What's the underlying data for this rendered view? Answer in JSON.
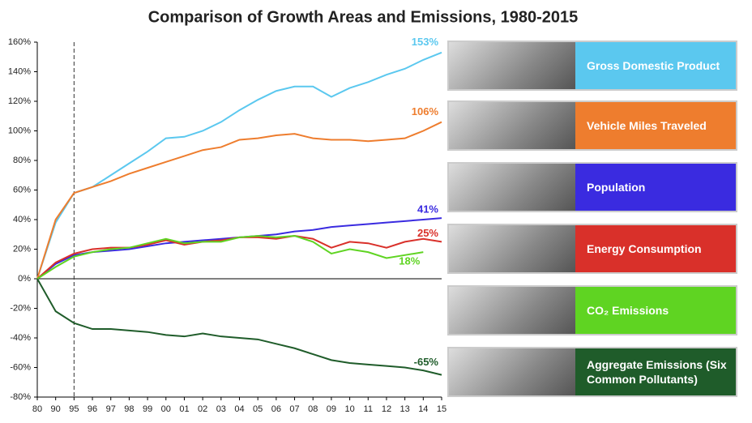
{
  "chart_data": {
    "type": "line",
    "title": "Comparison of Growth Areas and Emissions, 1980-2015",
    "categories": [
      "80",
      "90",
      "95",
      "96",
      "97",
      "98",
      "99",
      "00",
      "01",
      "02",
      "03",
      "04",
      "05",
      "06",
      "07",
      "08",
      "09",
      "10",
      "11",
      "12",
      "13",
      "14",
      "15"
    ],
    "ylim": [
      -80,
      160
    ],
    "yticks": [
      {
        "value": -80,
        "label": "-80%"
      },
      {
        "value": -60,
        "label": "-60%"
      },
      {
        "value": -40,
        "label": "-40%"
      },
      {
        "value": -20,
        "label": "-20%"
      },
      {
        "value": 0,
        "label": "0%"
      },
      {
        "value": 20,
        "label": "20%"
      },
      {
        "value": 40,
        "label": "40%"
      },
      {
        "value": 60,
        "label": "60%"
      },
      {
        "value": 80,
        "label": "80%"
      },
      {
        "value": 100,
        "label": "100%"
      },
      {
        "value": 120,
        "label": "120%"
      },
      {
        "value": 140,
        "label": "140%"
      },
      {
        "value": 160,
        "label": "160%"
      }
    ],
    "grid": false,
    "legend": "right",
    "series": [
      {
        "name": "Gross Domestic Product",
        "color": "#5bc8ef",
        "values": [
          0,
          38,
          58,
          62,
          70,
          78,
          86,
          95,
          96,
          100,
          106,
          114,
          121,
          127,
          130,
          130,
          123,
          129,
          133,
          138,
          142,
          148,
          153
        ],
        "value_labels": [
          null,
          null,
          null,
          null,
          null,
          null,
          null,
          null,
          null,
          null,
          null,
          null,
          null,
          null,
          null,
          null,
          null,
          null,
          null,
          null,
          null,
          null,
          "153%"
        ]
      },
      {
        "name": "Vehicle Miles Traveled",
        "color": "#ee7d2e",
        "values": [
          0,
          40,
          58,
          62,
          66,
          71,
          75,
          79,
          83,
          87,
          89,
          94,
          95,
          97,
          98,
          95,
          94,
          94,
          93,
          94,
          95,
          100,
          106
        ],
        "value_labels": [
          null,
          null,
          null,
          null,
          null,
          null,
          null,
          null,
          null,
          null,
          null,
          null,
          null,
          null,
          null,
          null,
          null,
          null,
          null,
          null,
          null,
          null,
          "106%"
        ]
      },
      {
        "name": "Population",
        "color": "#3a2be0",
        "values": [
          0,
          10,
          16,
          18,
          19,
          20,
          22,
          24,
          25,
          26,
          27,
          28,
          29,
          30,
          32,
          33,
          35,
          36,
          37,
          38,
          39,
          40,
          41
        ],
        "value_labels": [
          null,
          null,
          null,
          null,
          null,
          null,
          null,
          null,
          null,
          null,
          null,
          null,
          null,
          null,
          null,
          null,
          null,
          null,
          null,
          null,
          null,
          null,
          "41%"
        ]
      },
      {
        "name": "Energy Consumption",
        "color": "#d9302a",
        "values": [
          0,
          11,
          17,
          20,
          21,
          21,
          23,
          26,
          23,
          25,
          26,
          28,
          28,
          27,
          29,
          27,
          21,
          25,
          24,
          21,
          25,
          27,
          25
        ],
        "value_labels": [
          null,
          null,
          null,
          null,
          null,
          null,
          null,
          null,
          null,
          null,
          null,
          null,
          null,
          null,
          null,
          null,
          null,
          null,
          null,
          null,
          null,
          null,
          "25%"
        ]
      },
      {
        "name": "CO₂ Emissions",
        "color": "#5fd422",
        "values": [
          0,
          8,
          15,
          18,
          20,
          21,
          24,
          27,
          24,
          25,
          25,
          28,
          29,
          28,
          29,
          25,
          17,
          20,
          18,
          14,
          16,
          18,
          null
        ],
        "value_labels": [
          null,
          null,
          null,
          null,
          null,
          null,
          null,
          null,
          null,
          null,
          null,
          null,
          null,
          null,
          null,
          null,
          null,
          null,
          null,
          null,
          null,
          "18%",
          null
        ]
      },
      {
        "name": "Aggregate Emissions (Six Common Pollutants)",
        "color": "#1f5c2a",
        "values": [
          0,
          -22,
          -30,
          -34,
          -34,
          -35,
          -36,
          -38,
          -39,
          -37,
          -39,
          -40,
          -41,
          -44,
          -47,
          -51,
          -55,
          -57,
          -58,
          -59,
          -60,
          -62,
          -65
        ],
        "value_labels": [
          null,
          null,
          null,
          null,
          null,
          null,
          null,
          null,
          null,
          null,
          null,
          null,
          null,
          null,
          null,
          null,
          null,
          null,
          null,
          null,
          null,
          null,
          "-65%"
        ]
      }
    ]
  }
}
